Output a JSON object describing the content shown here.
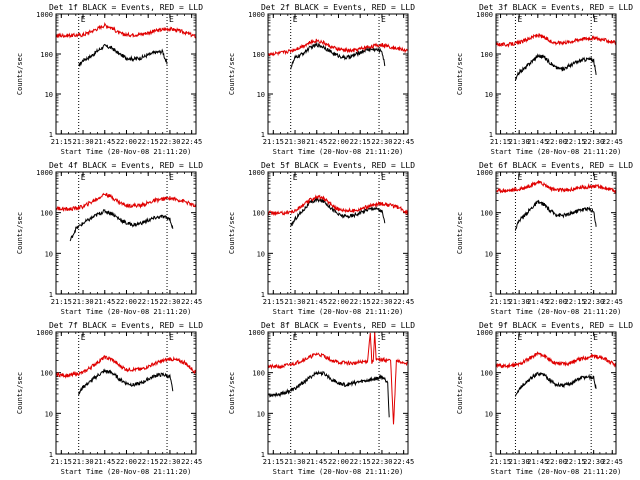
{
  "figure": {
    "ylabel": "Counts/sec",
    "xlabel": "Start Time (20-Nov-08 21:11:20)",
    "marker_label": "E",
    "ytick_labels": [
      "1",
      "10",
      "100",
      "1000"
    ],
    "xtick_labels": [
      "21:15",
      "21:30",
      "21:45",
      "22:00",
      "22:15",
      "22:30",
      "22:45"
    ],
    "colors": {
      "events": "#000000",
      "lld": "#e00000",
      "axes": "#000000",
      "background": "#ffffff"
    }
  },
  "chart_data": [
    {
      "type": "line",
      "title": "Det 1f BLACK = Events, RED = LLD",
      "xlim": [
        "21:11:20",
        "22:48:00"
      ],
      "ylim": [
        1,
        1000
      ],
      "yscale": "log",
      "xticks": [
        "21:15",
        "21:30",
        "21:45",
        "22:00",
        "22:15",
        "22:30",
        "22:45"
      ],
      "markers": [
        "21:27",
        "22:28"
      ],
      "series": [
        {
          "name": "Events",
          "color": "#000000",
          "x": [
            "21:27",
            "21:30",
            "21:35",
            "21:40",
            "21:45",
            "21:50",
            "21:55",
            "22:00",
            "22:05",
            "22:10",
            "22:15",
            "22:20",
            "22:25",
            "22:28"
          ],
          "y": [
            50,
            70,
            85,
            120,
            160,
            140,
            100,
            80,
            75,
            80,
            95,
            110,
            115,
            55
          ]
        },
        {
          "name": "LLD",
          "color": "#e00000",
          "x": [
            "21:11",
            "21:20",
            "21:30",
            "21:40",
            "21:45",
            "21:50",
            "21:55",
            "22:00",
            "22:10",
            "22:20",
            "22:30",
            "22:40",
            "22:48"
          ],
          "y": [
            290,
            290,
            300,
            430,
            530,
            450,
            330,
            300,
            310,
            380,
            430,
            350,
            270
          ]
        }
      ]
    },
    {
      "type": "line",
      "title": "Det 2f BLACK = Events, RED = LLD",
      "xlim": [
        "21:11:20",
        "22:48:00"
      ],
      "ylim": [
        1,
        1000
      ],
      "yscale": "log",
      "xticks": [
        "21:15",
        "21:30",
        "21:45",
        "22:00",
        "22:15",
        "22:30",
        "22:45"
      ],
      "markers": [
        "21:27",
        "22:28"
      ],
      "series": [
        {
          "name": "Events",
          "color": "#000000",
          "x": [
            "21:27",
            "21:30",
            "21:35",
            "21:40",
            "21:45",
            "21:50",
            "21:55",
            "22:00",
            "22:05",
            "22:10",
            "22:15",
            "22:20",
            "22:25",
            "22:30",
            "22:32"
          ],
          "y": [
            45,
            80,
            100,
            140,
            170,
            150,
            110,
            90,
            80,
            90,
            110,
            130,
            130,
            120,
            50
          ]
        },
        {
          "name": "LLD",
          "color": "#e00000",
          "x": [
            "21:11",
            "21:20",
            "21:30",
            "21:40",
            "21:45",
            "21:50",
            "21:55",
            "22:00",
            "22:10",
            "22:20",
            "22:30",
            "22:40",
            "22:48"
          ],
          "y": [
            100,
            105,
            130,
            190,
            220,
            190,
            150,
            130,
            120,
            150,
            170,
            140,
            120
          ]
        }
      ]
    },
    {
      "type": "line",
      "title": "Det 3f BLACK = Events, RED = LLD",
      "xlim": [
        "21:11:20",
        "22:48:00"
      ],
      "ylim": [
        1,
        1000
      ],
      "yscale": "log",
      "xticks": [
        "21:15",
        "21:30",
        "21:45",
        "22:00",
        "22:15",
        "22:30",
        "22:45"
      ],
      "markers": [
        "21:27",
        "22:28"
      ],
      "series": [
        {
          "name": "Events",
          "color": "#000000",
          "x": [
            "21:27",
            "21:30",
            "21:35",
            "21:40",
            "21:45",
            "21:50",
            "21:55",
            "22:00",
            "22:05",
            "22:10",
            "22:15",
            "22:20",
            "22:25",
            "22:30",
            "22:32"
          ],
          "y": [
            22,
            35,
            45,
            65,
            90,
            85,
            60,
            45,
            42,
            50,
            60,
            70,
            75,
            70,
            30
          ]
        },
        {
          "name": "LLD",
          "color": "#e00000",
          "x": [
            "21:11",
            "21:20",
            "21:30",
            "21:40",
            "21:45",
            "21:50",
            "21:55",
            "22:00",
            "22:10",
            "22:20",
            "22:30",
            "22:40",
            "22:48"
          ],
          "y": [
            180,
            170,
            190,
            260,
            300,
            260,
            210,
            190,
            200,
            240,
            250,
            220,
            190
          ]
        }
      ]
    },
    {
      "type": "line",
      "title": "Det 4f BLACK = Events, RED = LLD",
      "xlim": [
        "21:11:20",
        "22:48:00"
      ],
      "ylim": [
        1,
        1000
      ],
      "yscale": "log",
      "xticks": [
        "21:15",
        "21:30",
        "21:45",
        "22:00",
        "22:15",
        "22:30",
        "22:45"
      ],
      "markers": [
        "21:27",
        "22:28"
      ],
      "series": [
        {
          "name": "Events",
          "color": "#000000",
          "x": [
            "21:21",
            "21:25",
            "21:30",
            "21:35",
            "21:40",
            "21:45",
            "21:50",
            "21:55",
            "22:00",
            "22:05",
            "22:10",
            "22:15",
            "22:20",
            "22:25",
            "22:30",
            "22:32"
          ],
          "y": [
            20,
            40,
            55,
            70,
            90,
            110,
            95,
            70,
            55,
            50,
            55,
            65,
            75,
            80,
            70,
            40
          ]
        },
        {
          "name": "LLD",
          "color": "#e00000",
          "x": [
            "21:11",
            "21:20",
            "21:30",
            "21:40",
            "21:45",
            "21:50",
            "21:55",
            "22:00",
            "22:10",
            "22:20",
            "22:30",
            "22:40",
            "22:48"
          ],
          "y": [
            130,
            120,
            140,
            220,
            290,
            240,
            180,
            150,
            150,
            200,
            230,
            190,
            140
          ]
        }
      ]
    },
    {
      "type": "line",
      "title": "Det 5f BLACK = Events, RED = LLD",
      "xlim": [
        "21:11:20",
        "22:48:00"
      ],
      "ylim": [
        1,
        1000
      ],
      "yscale": "log",
      "xticks": [
        "21:15",
        "21:30",
        "21:45",
        "22:00",
        "22:15",
        "22:30",
        "22:45"
      ],
      "markers": [
        "21:27",
        "22:28"
      ],
      "series": [
        {
          "name": "Events",
          "color": "#000000",
          "x": [
            "21:27",
            "21:30",
            "21:35",
            "21:40",
            "21:45",
            "21:50",
            "21:55",
            "22:00",
            "22:05",
            "22:10",
            "22:15",
            "22:20",
            "22:25",
            "22:30",
            "22:32"
          ],
          "y": [
            45,
            70,
            110,
            170,
            210,
            190,
            130,
            90,
            80,
            85,
            100,
            120,
            130,
            110,
            55
          ]
        },
        {
          "name": "LLD",
          "color": "#e00000",
          "x": [
            "21:11",
            "21:20",
            "21:30",
            "21:40",
            "21:45",
            "21:50",
            "21:55",
            "22:00",
            "22:10",
            "22:20",
            "22:30",
            "22:40",
            "22:48"
          ],
          "y": [
            100,
            95,
            110,
            200,
            250,
            220,
            160,
            120,
            110,
            140,
            170,
            140,
            100
          ]
        }
      ]
    },
    {
      "type": "line",
      "title": "Det 6f BLACK = Events, RED = LLD",
      "xlim": [
        "21:11:20",
        "22:48:00"
      ],
      "ylim": [
        1,
        1000
      ],
      "yscale": "log",
      "xticks": [
        "21:15",
        "21:30",
        "21:45",
        "22:00",
        "22:15",
        "22:30",
        "22:45"
      ],
      "markers": [
        "21:27",
        "22:28"
      ],
      "series": [
        {
          "name": "Events",
          "color": "#000000",
          "x": [
            "21:27",
            "21:30",
            "21:35",
            "21:40",
            "21:45",
            "21:50",
            "21:55",
            "22:00",
            "22:05",
            "22:10",
            "22:15",
            "22:20",
            "22:25",
            "22:30",
            "22:32"
          ],
          "y": [
            40,
            65,
            90,
            130,
            180,
            160,
            110,
            90,
            85,
            90,
            105,
            120,
            125,
            110,
            45
          ]
        },
        {
          "name": "LLD",
          "color": "#e00000",
          "x": [
            "21:11",
            "21:20",
            "21:30",
            "21:40",
            "21:45",
            "21:50",
            "21:55",
            "22:00",
            "22:10",
            "22:20",
            "22:30",
            "22:40",
            "22:48"
          ],
          "y": [
            350,
            350,
            370,
            480,
            570,
            500,
            400,
            360,
            360,
            420,
            450,
            400,
            330
          ]
        }
      ]
    },
    {
      "type": "line",
      "title": "Det 7f BLACK = Events, RED = LLD",
      "xlim": [
        "21:11:20",
        "22:48:00"
      ],
      "ylim": [
        1,
        1000
      ],
      "yscale": "log",
      "xticks": [
        "21:15",
        "21:30",
        "21:45",
        "22:00",
        "22:15",
        "22:30",
        "22:45"
      ],
      "markers": [
        "21:27",
        "22:28"
      ],
      "series": [
        {
          "name": "Events",
          "color": "#000000",
          "x": [
            "21:27",
            "21:30",
            "21:35",
            "21:40",
            "21:45",
            "21:50",
            "21:55",
            "22:00",
            "22:05",
            "22:10",
            "22:15",
            "22:20",
            "22:25",
            "22:30",
            "22:32"
          ],
          "y": [
            30,
            45,
            60,
            85,
            110,
            100,
            70,
            55,
            50,
            55,
            70,
            85,
            90,
            80,
            35
          ]
        },
        {
          "name": "LLD",
          "color": "#e00000",
          "x": [
            "21:11",
            "21:20",
            "21:30",
            "21:40",
            "21:45",
            "21:50",
            "21:55",
            "22:00",
            "22:10",
            "22:20",
            "22:30",
            "22:40",
            "22:48"
          ],
          "y": [
            90,
            85,
            100,
            180,
            240,
            210,
            150,
            120,
            120,
            170,
            220,
            180,
            100
          ]
        }
      ]
    },
    {
      "type": "line",
      "title": "Det 8f BLACK = Events, RED = LLD",
      "xlim": [
        "21:11:20",
        "22:48:00"
      ],
      "ylim": [
        1,
        1000
      ],
      "yscale": "log",
      "xticks": [
        "21:15",
        "21:30",
        "21:45",
        "22:00",
        "22:15",
        "22:30",
        "22:45"
      ],
      "markers": [
        "21:27",
        "22:28"
      ],
      "series": [
        {
          "name": "Events",
          "color": "#000000",
          "x": [
            "21:11",
            "21:20",
            "21:30",
            "21:35",
            "21:40",
            "21:45",
            "21:50",
            "21:55",
            "22:00",
            "22:05",
            "22:10",
            "22:15",
            "22:20",
            "22:25",
            "22:30",
            "22:34",
            "22:35"
          ],
          "y": [
            28,
            30,
            40,
            55,
            75,
            100,
            95,
            70,
            55,
            50,
            55,
            60,
            65,
            70,
            80,
            60,
            8
          ]
        },
        {
          "name": "LLD",
          "color": "#e00000",
          "x": [
            "21:11",
            "21:20",
            "21:30",
            "21:40",
            "21:45",
            "21:50",
            "21:55",
            "22:00",
            "22:10",
            "22:20",
            "22:22",
            "22:23",
            "22:24",
            "22:25",
            "22:26",
            "22:30",
            "22:36",
            "22:38",
            "22:40",
            "22:48"
          ],
          "y": [
            140,
            140,
            170,
            240,
            290,
            260,
            200,
            180,
            170,
            190,
            1000,
            180,
            190,
            1000,
            200,
            210,
            200,
            5,
            190,
            170
          ]
        }
      ]
    },
    {
      "type": "line",
      "title": "Det 9f BLACK = Events, RED = LLD",
      "xlim": [
        "21:11:20",
        "22:48:00"
      ],
      "ylim": [
        1,
        1000
      ],
      "yscale": "log",
      "xticks": [
        "21:15",
        "21:30",
        "21:45",
        "22:00",
        "22:15",
        "22:30",
        "22:45"
      ],
      "markers": [
        "21:27",
        "22:28"
      ],
      "series": [
        {
          "name": "Events",
          "color": "#000000",
          "x": [
            "21:27",
            "21:30",
            "21:35",
            "21:40",
            "21:45",
            "21:50",
            "21:55",
            "22:00",
            "22:05",
            "22:10",
            "22:15",
            "22:20",
            "22:25",
            "22:30",
            "22:32"
          ],
          "y": [
            25,
            40,
            55,
            75,
            95,
            90,
            65,
            50,
            48,
            52,
            62,
            75,
            80,
            75,
            40
          ]
        },
        {
          "name": "LLD",
          "color": "#e00000",
          "x": [
            "21:11",
            "21:20",
            "21:30",
            "21:40",
            "21:45",
            "21:50",
            "21:55",
            "22:00",
            "22:10",
            "22:20",
            "22:30",
            "22:40",
            "22:48"
          ],
          "y": [
            150,
            145,
            160,
            240,
            300,
            260,
            200,
            170,
            170,
            220,
            260,
            210,
            150
          ]
        }
      ]
    }
  ]
}
